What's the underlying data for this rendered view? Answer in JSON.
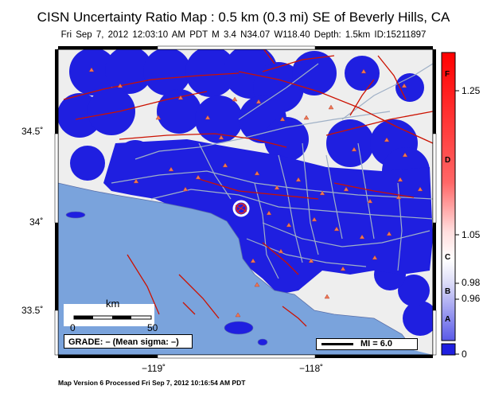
{
  "header": {
    "title": "CISN Uncertainty Ratio Map : 0.5 km (0.3 mi) SE of Beverly Hills, CA",
    "subtitle": "Fri Sep  7, 2012 12:03:10 AM PDT   M 3.4   N34.07 W118.40   Depth: 1.5km   ID:15211897"
  },
  "axes": {
    "lat_labels": [
      "34.5˚",
      "34˚",
      "33.5˚"
    ],
    "lon_labels": [
      "−119˚",
      "−118˚"
    ]
  },
  "colorbar": {
    "values": [
      "1.25",
      "1.05",
      "0.98",
      "0.96",
      "0"
    ],
    "grades": [
      "F",
      "D",
      "C",
      "B",
      "A"
    ]
  },
  "scale_bar": {
    "unit": "km",
    "start": "0",
    "end": "50"
  },
  "grade_box": {
    "text": "GRADE: – (Mean sigma: –)"
  },
  "legend": {
    "mi_text": "MI = 6.0"
  },
  "footer": {
    "text": "Map Version 6 Processed Fri Sep  7, 2012 10:16:54 AM PDT"
  },
  "colors": {
    "ocean": "#7aa3dc",
    "land_grey": "#eeeeee",
    "uncertainty_blue": "#1f1fe0",
    "roads": "#9fb0c6",
    "faults": "#cc1100",
    "stations": "#ee7755"
  }
}
